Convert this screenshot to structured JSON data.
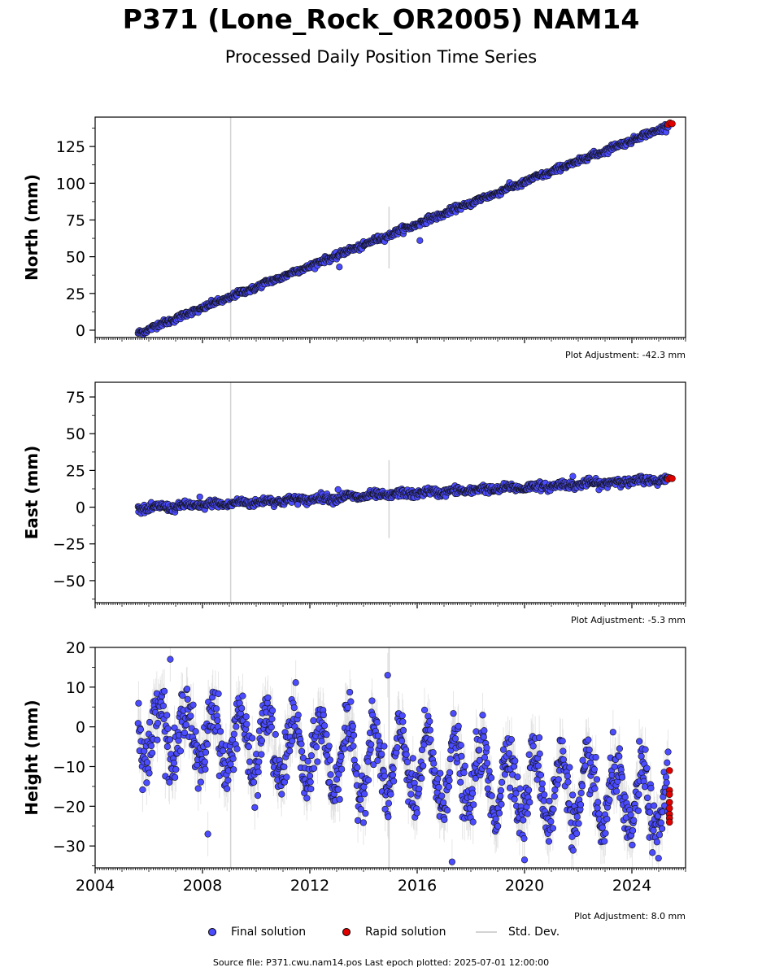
{
  "title": "P371 (Lone_Rock_OR2005) NAM14",
  "subtitle": "Processed Daily Position Time Series",
  "legend": {
    "final": "Final solution",
    "rapid": "Rapid solution",
    "std": "Std. Dev."
  },
  "footer": "Source file: P371.cwu.nam14.pos  Last epoch plotted: 2025-07-01 12:00:00",
  "colors": {
    "final": "#4b4bff",
    "rapid": "#e00000",
    "std": "#d3d3d3",
    "axis": "#000000"
  },
  "chart_data": [
    {
      "type": "scatter",
      "ylabel": "North (mm)",
      "xlim": [
        2004.0,
        2026.0
      ],
      "ylim": [
        -5,
        145
      ],
      "yticks": [
        0,
        25,
        50,
        75,
        100,
        125
      ],
      "adjustment": "Plot Adjustment: -42.3 mm",
      "x_start": 2005.6,
      "x_end": 2025.35,
      "trend": {
        "start": -2,
        "end": 139
      },
      "noise": 1.0,
      "seasonal": 0.5,
      "std_lines": [
        {
          "x": 2009.05,
          "low": -5,
          "high": 145
        },
        {
          "x": 2014.95,
          "low": 42,
          "high": 84
        }
      ],
      "outliers": [
        {
          "x": 2013.1,
          "y": 43
        },
        {
          "x": 2016.1,
          "y": 61
        }
      ],
      "rapid": [
        {
          "x": 2025.35,
          "y": 140
        },
        {
          "x": 2025.42,
          "y": 141
        },
        {
          "x": 2025.5,
          "y": 140.5
        }
      ],
      "show_xticklabels": false
    },
    {
      "type": "scatter",
      "ylabel": "East (mm)",
      "xlim": [
        2004.0,
        2026.0
      ],
      "ylim": [
        -65,
        85
      ],
      "yticks": [
        -50,
        -25,
        0,
        25,
        50,
        75
      ],
      "adjustment": "Plot Adjustment: -5.3 mm",
      "x_start": 2005.6,
      "x_end": 2025.35,
      "trend": {
        "start": -1,
        "end": 19
      },
      "noise": 1.3,
      "seasonal": 1.0,
      "std_lines": [
        {
          "x": 2009.05,
          "low": -65,
          "high": 85
        },
        {
          "x": 2014.95,
          "low": -21,
          "high": 32
        }
      ],
      "outliers": [
        {
          "x": 2013.05,
          "y": 12
        },
        {
          "x": 2021.8,
          "y": 21
        },
        {
          "x": 2007.9,
          "y": 7
        }
      ],
      "rapid": [
        {
          "x": 2025.35,
          "y": 19
        },
        {
          "x": 2025.42,
          "y": 20
        },
        {
          "x": 2025.5,
          "y": 19.5
        }
      ],
      "show_xticklabels": false
    },
    {
      "type": "scatter",
      "ylabel": "Height (mm)",
      "xlim": [
        2004.0,
        2026.0
      ],
      "ylim": [
        -35.5,
        20
      ],
      "yticks": [
        -30,
        -20,
        -10,
        0,
        10,
        20
      ],
      "xticks": [
        2004,
        2008,
        2012,
        2016,
        2020,
        2024
      ],
      "adjustment": "Plot Adjustment: 8.0 mm",
      "x_start": 2005.6,
      "x_end": 2025.35,
      "trend": {
        "start": 0,
        "end": -20
      },
      "noise": 3.5,
      "seasonal": 8.5,
      "std_lines": [
        {
          "x": 2009.05,
          "low": -35.5,
          "high": 20
        },
        {
          "x": 2014.95,
          "low": -35.5,
          "high": 20
        }
      ],
      "outliers": [
        {
          "x": 2017.3,
          "y": -34
        },
        {
          "x": 2008.2,
          "y": -27
        },
        {
          "x": 2020.0,
          "y": -33.5
        },
        {
          "x": 2014.9,
          "y": 13
        },
        {
          "x": 2006.8,
          "y": 17
        }
      ],
      "rapid": [
        {
          "x": 2025.4,
          "y": -11
        },
        {
          "x": 2025.4,
          "y": -16
        },
        {
          "x": 2025.4,
          "y": -17
        },
        {
          "x": 2025.4,
          "y": -19
        },
        {
          "x": 2025.4,
          "y": -20.5
        },
        {
          "x": 2025.4,
          "y": -22
        },
        {
          "x": 2025.4,
          "y": -23
        },
        {
          "x": 2025.4,
          "y": -24
        }
      ],
      "show_xticklabels": true
    }
  ]
}
